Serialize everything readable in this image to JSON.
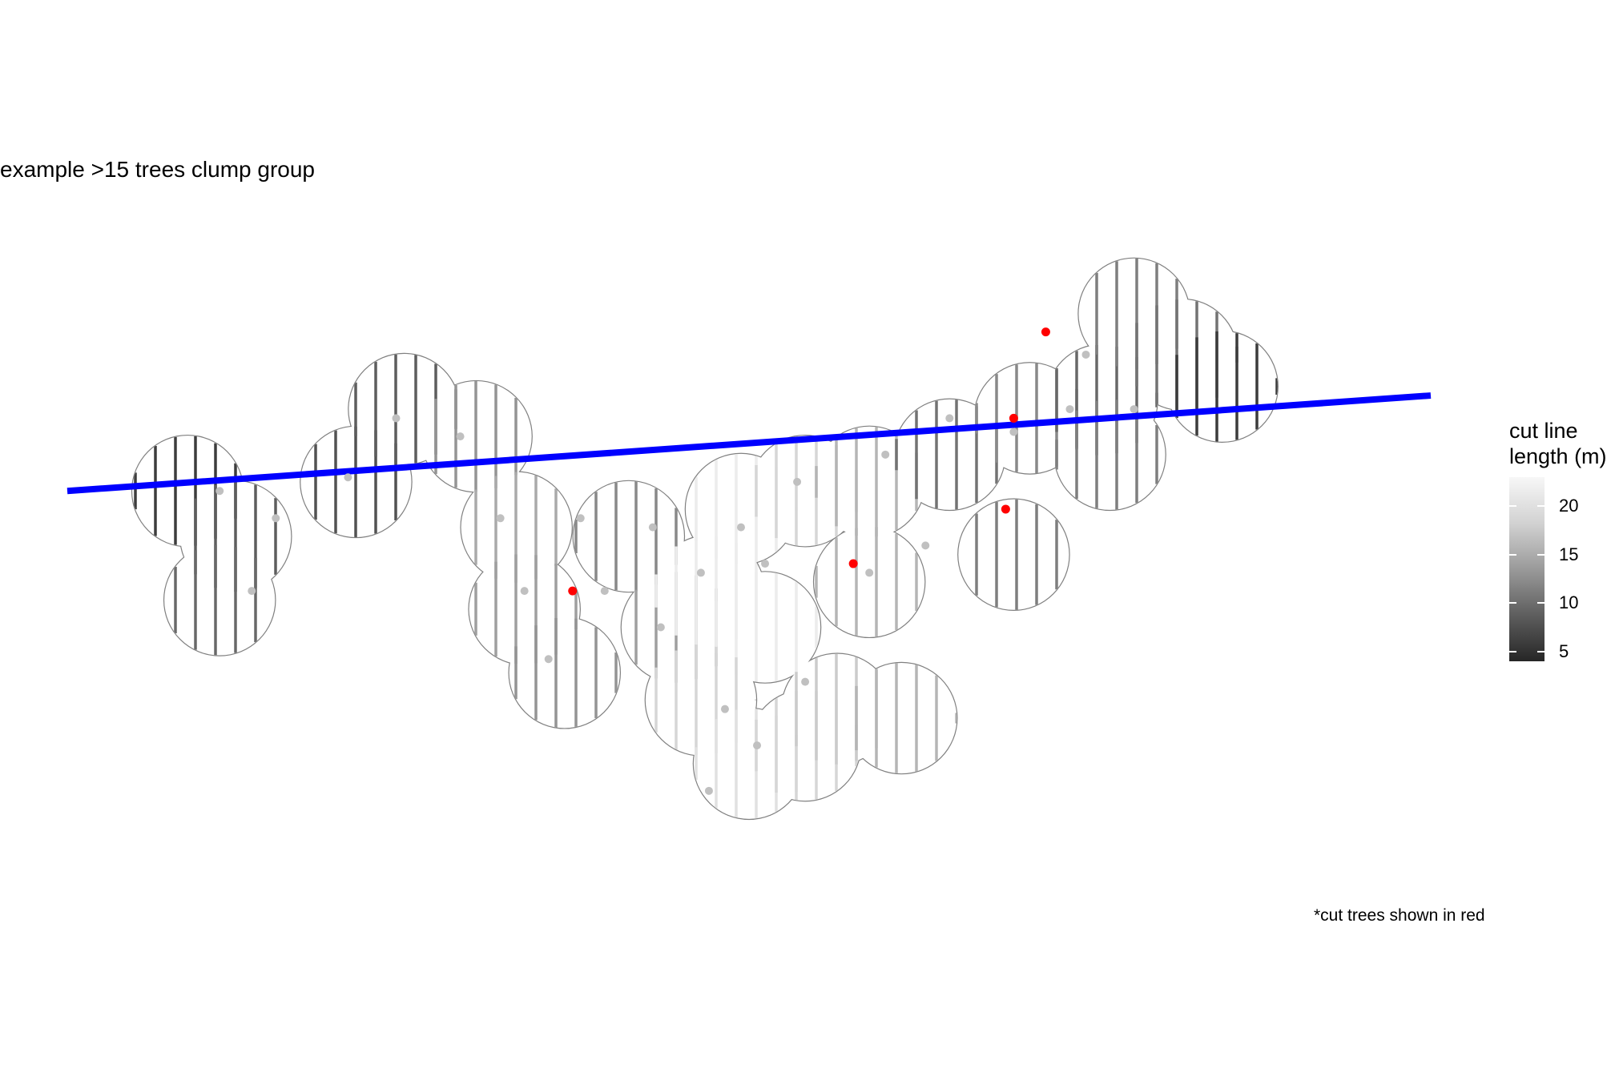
{
  "chart_data": {
    "type": "scatter",
    "title": "example >15 trees clump group",
    "legend": {
      "title_line1": "cut line",
      "title_line2": "length (m)",
      "ticks": [
        20,
        15,
        10,
        5
      ],
      "range": [
        4,
        23
      ],
      "placement": "right"
    },
    "caption": "*cut trees shown in red",
    "colors": {
      "cut_line": "#0000ff",
      "cut_tree": "#ff0000",
      "kept_tree": "#c0c0c0",
      "crown_outline": "#808080",
      "length_low": "#262626",
      "length_high": "#f7f7f7"
    },
    "cut_line": {
      "x": [
        0,
        1700
      ],
      "y": [
        0,
        105
      ]
    },
    "crowns": [
      {
        "x": 150,
        "y": 0,
        "length": 6
      },
      {
        "x": 210,
        "y": -50,
        "length": 9
      },
      {
        "x": 190,
        "y": -120,
        "length": 10
      },
      {
        "x": 360,
        "y": 10,
        "length": 8
      },
      {
        "x": 420,
        "y": 90,
        "length": 9
      },
      {
        "x": 510,
        "y": 60,
        "length": 14
      },
      {
        "x": 560,
        "y": -40,
        "length": 16
      },
      {
        "x": 570,
        "y": -130,
        "length": 15
      },
      {
        "x": 620,
        "y": -200,
        "length": 14
      },
      {
        "x": 700,
        "y": -50,
        "length": 13
      },
      {
        "x": 760,
        "y": -150,
        "length": 15
      },
      {
        "x": 840,
        "y": -20,
        "length": 22
      },
      {
        "x": 800,
        "y": -110,
        "length": 22
      },
      {
        "x": 870,
        "y": -150,
        "length": 22
      },
      {
        "x": 920,
        "y": 0,
        "length": 20
      },
      {
        "x": 1000,
        "y": 10,
        "length": 17
      },
      {
        "x": 1000,
        "y": -100,
        "length": 17
      },
      {
        "x": 790,
        "y": -230,
        "length": 20
      },
      {
        "x": 850,
        "y": -300,
        "length": 21
      },
      {
        "x": 920,
        "y": -280,
        "length": 20
      },
      {
        "x": 960,
        "y": -240,
        "length": 19
      },
      {
        "x": 1040,
        "y": -250,
        "length": 17
      },
      {
        "x": 1100,
        "y": 40,
        "length": 11
      },
      {
        "x": 1200,
        "y": 80,
        "length": 13
      },
      {
        "x": 1180,
        "y": -70,
        "length": 12
      },
      {
        "x": 1290,
        "y": 100,
        "length": 10
      },
      {
        "x": 1300,
        "y": 40,
        "length": 12
      },
      {
        "x": 1330,
        "y": 195,
        "length": 12
      },
      {
        "x": 1390,
        "y": 150,
        "length": 11
      },
      {
        "x": 1440,
        "y": 115,
        "length": 6
      }
    ],
    "kept_trees": [
      {
        "x": 190,
        "y": 0
      },
      {
        "x": 260,
        "y": -30
      },
      {
        "x": 230,
        "y": -110
      },
      {
        "x": 350,
        "y": 15
      },
      {
        "x": 410,
        "y": 80
      },
      {
        "x": 490,
        "y": 60
      },
      {
        "x": 540,
        "y": -30
      },
      {
        "x": 570,
        "y": -110
      },
      {
        "x": 600,
        "y": -185
      },
      {
        "x": 640,
        "y": -30
      },
      {
        "x": 730,
        "y": -40
      },
      {
        "x": 840,
        "y": -40
      },
      {
        "x": 790,
        "y": -90
      },
      {
        "x": 740,
        "y": -150
      },
      {
        "x": 670,
        "y": -110
      },
      {
        "x": 910,
        "y": 10
      },
      {
        "x": 870,
        "y": -80
      },
      {
        "x": 820,
        "y": -240
      },
      {
        "x": 800,
        "y": -330
      },
      {
        "x": 860,
        "y": -280
      },
      {
        "x": 920,
        "y": -210
      },
      {
        "x": 1020,
        "y": 40
      },
      {
        "x": 1000,
        "y": -90
      },
      {
        "x": 1100,
        "y": 80
      },
      {
        "x": 1070,
        "y": -60
      },
      {
        "x": 1270,
        "y": 150
      },
      {
        "x": 1250,
        "y": 90
      },
      {
        "x": 1180,
        "y": 65
      },
      {
        "x": 1330,
        "y": 90
      }
    ],
    "cut_trees": [
      {
        "x": 630,
        "y": -110
      },
      {
        "x": 980,
        "y": -80
      },
      {
        "x": 1170,
        "y": -20
      },
      {
        "x": 1180,
        "y": 80
      },
      {
        "x": 1220,
        "y": 175
      }
    ],
    "xlim": [
      0,
      1700
    ],
    "ylim": [
      -420,
      320
    ],
    "grid": false
  }
}
